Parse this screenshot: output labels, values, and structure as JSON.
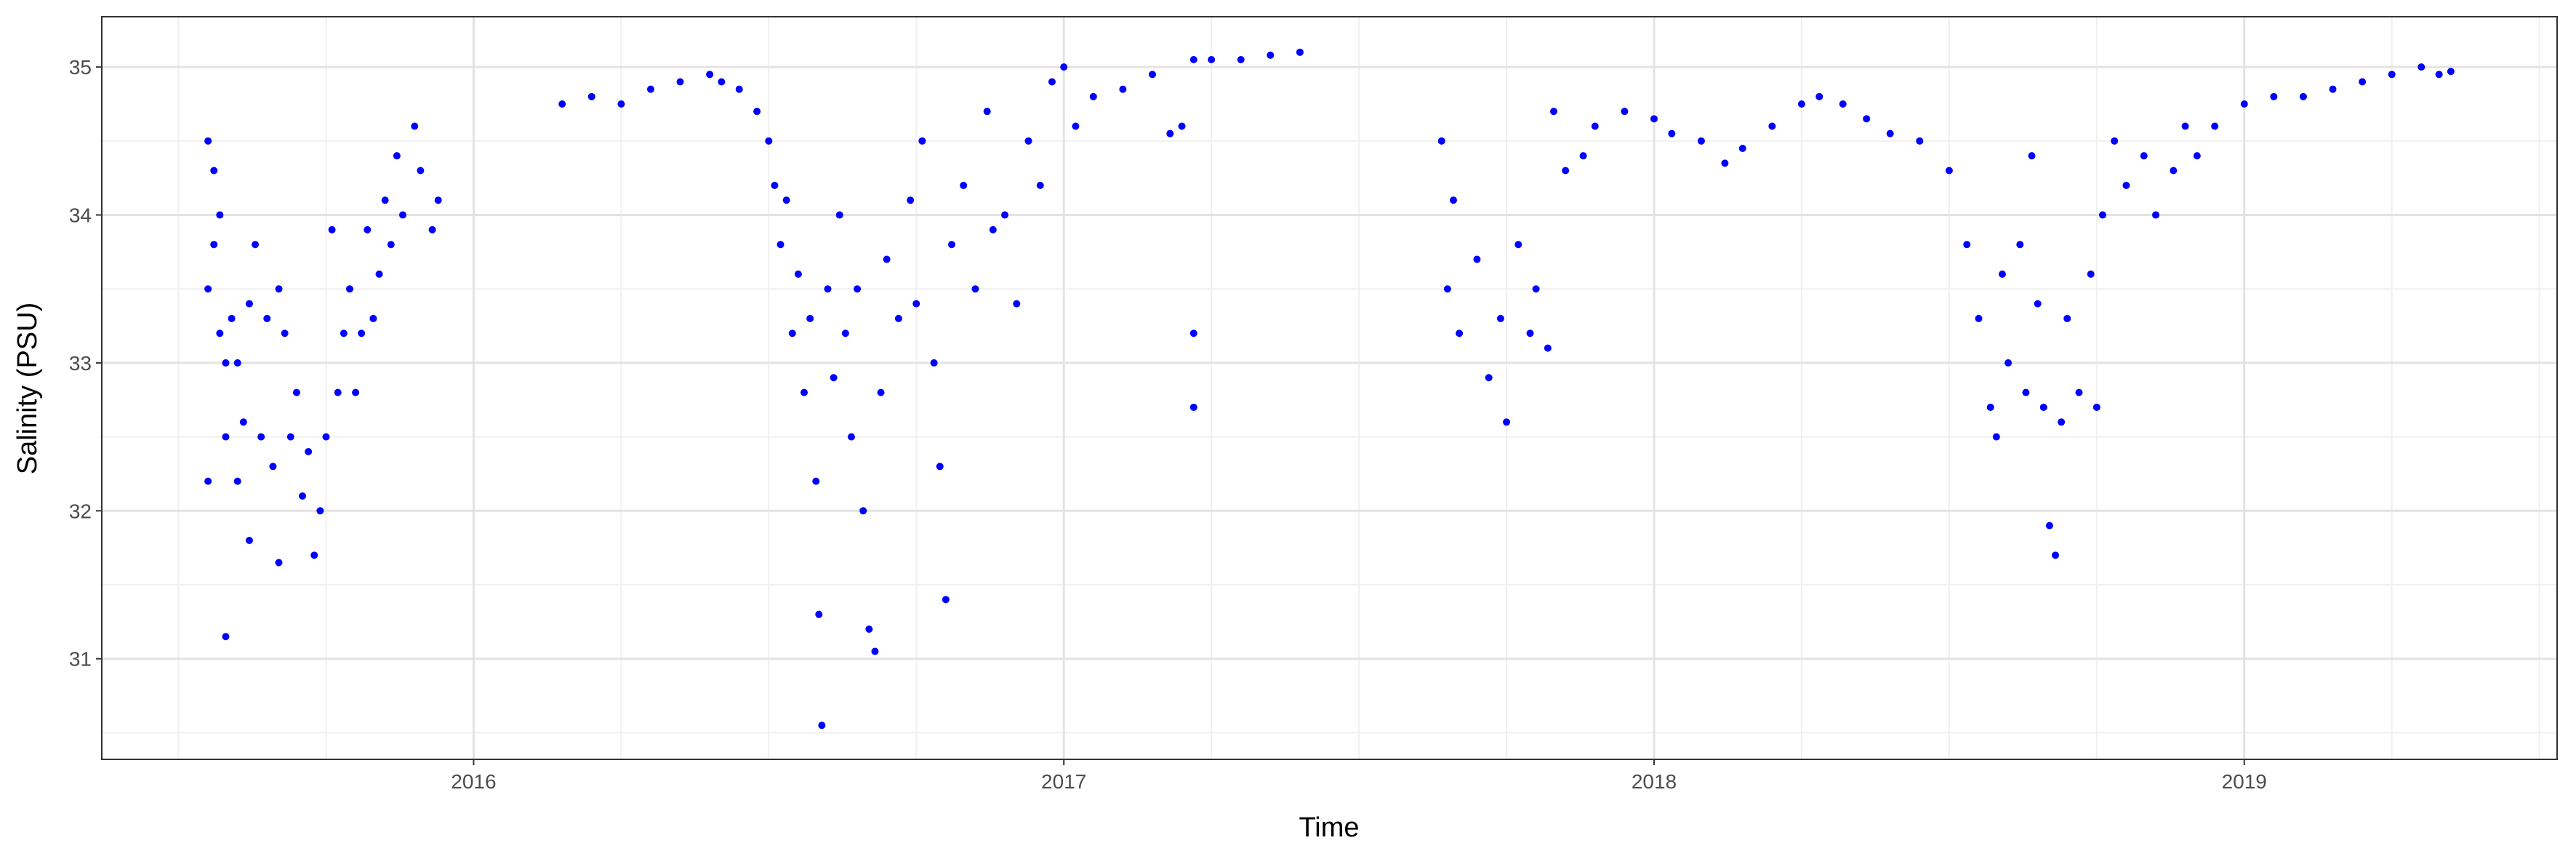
{
  "chart_data": {
    "type": "scatter",
    "x_label": "Time",
    "y_label": "Salinity (PSU)",
    "xlim": [
      2015.37,
      2019.53
    ],
    "ylim": [
      30.32,
      35.34
    ],
    "xticks": [
      2016,
      2017,
      2018,
      2019
    ],
    "yticks": [
      31,
      32,
      33,
      34,
      35
    ],
    "grid": true,
    "series": [
      {
        "color": "#0000ff",
        "x": [
          2015.55,
          2015.55,
          2015.55,
          2015.56,
          2015.56,
          2015.57,
          2015.57,
          2015.58,
          2015.58,
          2015.58,
          2015.59,
          2015.6,
          2015.6,
          2015.61,
          2015.62,
          2015.62,
          2015.63,
          2015.64,
          2015.65,
          2015.66,
          2015.67,
          2015.67,
          2015.68,
          2015.69,
          2015.7,
          2015.71,
          2015.72,
          2015.73,
          2015.74,
          2015.75,
          2015.76,
          2015.77,
          2015.78,
          2015.79,
          2015.8,
          2015.81,
          2015.82,
          2015.83,
          2015.84,
          2015.85,
          2015.86,
          2015.87,
          2015.88,
          2015.9,
          2015.91,
          2015.93,
          2015.94,
          2016.15,
          2016.2,
          2016.25,
          2016.3,
          2016.35,
          2016.4,
          2016.42,
          2016.45,
          2016.48,
          2016.5,
          2016.51,
          2016.52,
          2016.53,
          2016.54,
          2016.55,
          2016.56,
          2016.57,
          2016.58,
          2016.585,
          2016.59,
          2016.6,
          2016.61,
          2016.62,
          2016.63,
          2016.64,
          2016.65,
          2016.66,
          2016.67,
          2016.68,
          2016.69,
          2016.7,
          2016.72,
          2016.74,
          2016.75,
          2016.76,
          2016.78,
          2016.79,
          2016.8,
          2016.81,
          2016.83,
          2016.85,
          2016.87,
          2016.88,
          2016.9,
          2016.92,
          2016.94,
          2016.96,
          2016.98,
          2017.0,
          2017.02,
          2017.05,
          2017.1,
          2017.15,
          2017.18,
          2017.2,
          2017.22,
          2017.22,
          2017.22,
          2017.25,
          2017.3,
          2017.35,
          2017.4,
          2017.64,
          2017.65,
          2017.66,
          2017.67,
          2017.7,
          2017.72,
          2017.74,
          2017.75,
          2017.77,
          2017.79,
          2017.8,
          2017.82,
          2017.83,
          2017.85,
          2017.88,
          2017.9,
          2017.95,
          2018.0,
          2018.03,
          2018.08,
          2018.12,
          2018.15,
          2018.2,
          2018.25,
          2018.28,
          2018.32,
          2018.36,
          2018.4,
          2018.45,
          2018.5,
          2018.53,
          2018.55,
          2018.57,
          2018.58,
          2018.59,
          2018.6,
          2018.62,
          2018.63,
          2018.64,
          2018.65,
          2018.66,
          2018.67,
          2018.68,
          2018.69,
          2018.7,
          2018.72,
          2018.74,
          2018.75,
          2018.76,
          2018.78,
          2018.8,
          2018.83,
          2018.85,
          2018.88,
          2018.9,
          2018.92,
          2018.95,
          2019.0,
          2019.05,
          2019.1,
          2019.15,
          2019.2,
          2019.25,
          2019.3,
          2019.33,
          2019.35
        ],
        "values": [
          34.5,
          33.5,
          32.2,
          34.3,
          33.8,
          34.0,
          33.2,
          33.0,
          32.5,
          31.15,
          33.3,
          32.2,
          33.0,
          32.6,
          33.4,
          31.8,
          33.8,
          32.5,
          33.3,
          32.3,
          31.65,
          33.5,
          33.2,
          32.5,
          32.8,
          32.1,
          32.4,
          31.7,
          32.0,
          32.5,
          33.9,
          32.8,
          33.2,
          33.5,
          32.8,
          33.2,
          33.9,
          33.3,
          33.6,
          34.1,
          33.8,
          34.4,
          34.0,
          34.6,
          34.3,
          33.9,
          34.1,
          34.75,
          34.8,
          34.75,
          34.85,
          34.9,
          34.95,
          34.9,
          34.85,
          34.7,
          34.5,
          34.2,
          33.8,
          34.1,
          33.2,
          33.6,
          32.8,
          33.3,
          32.2,
          31.3,
          30.55,
          33.5,
          32.9,
          34.0,
          33.2,
          32.5,
          33.5,
          32.0,
          31.2,
          31.05,
          32.8,
          33.7,
          33.3,
          34.1,
          33.4,
          34.5,
          33.0,
          32.3,
          31.4,
          33.8,
          34.2,
          33.5,
          34.7,
          33.9,
          34.0,
          33.4,
          34.5,
          34.2,
          34.9,
          35.0,
          34.6,
          34.8,
          34.85,
          34.95,
          34.55,
          34.6,
          35.05,
          33.2,
          32.7,
          35.05,
          35.05,
          35.08,
          35.1,
          34.5,
          33.5,
          34.1,
          33.2,
          33.7,
          32.9,
          33.3,
          32.6,
          33.8,
          33.2,
          33.5,
          33.1,
          34.7,
          34.3,
          34.4,
          34.6,
          34.7,
          34.65,
          34.55,
          34.5,
          34.35,
          34.45,
          34.6,
          34.75,
          34.8,
          34.75,
          34.65,
          34.55,
          34.5,
          34.3,
          33.8,
          33.3,
          32.7,
          32.5,
          33.6,
          33.0,
          33.8,
          32.8,
          34.4,
          33.4,
          32.7,
          31.9,
          31.7,
          32.6,
          33.3,
          32.8,
          33.6,
          32.7,
          34.0,
          34.5,
          34.2,
          34.4,
          34.0,
          34.3,
          34.6,
          34.4,
          34.6,
          34.75,
          34.8,
          34.8,
          34.85,
          34.9,
          34.95,
          35.0,
          34.95,
          34.97
        ]
      }
    ]
  }
}
